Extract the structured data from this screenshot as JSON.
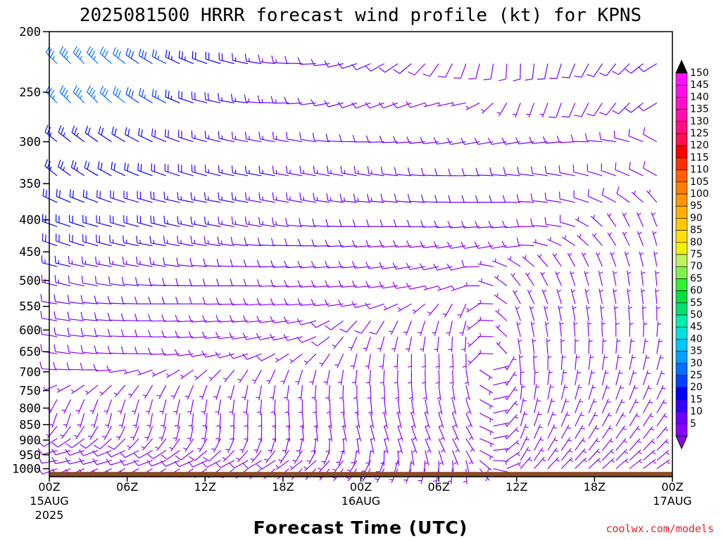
{
  "chart_data": {
    "type": "wind-barb-time-height",
    "title": "2025081500 HRRR forecast wind profile (kt) for KPNS",
    "xlabel": "Forecast Time (UTC)",
    "ylabel": "",
    "credit": "coolwx.com/models",
    "y_axis": {
      "unit": "hPa",
      "scale": "log-pressure",
      "ylim": [
        1030,
        200
      ],
      "ticks": [
        "200",
        "250",
        "300",
        "350",
        "400",
        "450",
        "500",
        "550",
        "600",
        "650",
        "700",
        "750",
        "800",
        "850",
        "900",
        "950",
        "1000"
      ]
    },
    "x_axis": {
      "xlim_hours": [
        0,
        48
      ],
      "ticks": [
        {
          "h": 0,
          "label": "00Z",
          "sub": "15AUG",
          "sub2": "2025"
        },
        {
          "h": 6,
          "label": "06Z",
          "sub": "",
          "sub2": ""
        },
        {
          "h": 12,
          "label": "12Z",
          "sub": "",
          "sub2": ""
        },
        {
          "h": 18,
          "label": "18Z",
          "sub": "",
          "sub2": ""
        },
        {
          "h": 24,
          "label": "00Z",
          "sub": "16AUG",
          "sub2": ""
        },
        {
          "h": 30,
          "label": "06Z",
          "sub": "",
          "sub2": ""
        },
        {
          "h": 36,
          "label": "12Z",
          "sub": "",
          "sub2": ""
        },
        {
          "h": 42,
          "label": "18Z",
          "sub": "",
          "sub2": ""
        },
        {
          "h": 48,
          "label": "00Z",
          "sub": "17AUG",
          "sub2": ""
        }
      ]
    },
    "surface_pressure_hpa": 1012,
    "colorbar": {
      "labels": [
        "5",
        "10",
        "15",
        "20",
        "25",
        "30",
        "35",
        "40",
        "45",
        "50",
        "55",
        "60",
        "65",
        "70",
        "75",
        "80",
        "85",
        "90",
        "95",
        "100",
        "105",
        "110",
        "115",
        "120",
        "125",
        "130",
        "135",
        "140",
        "145",
        "150"
      ],
      "colors": [
        "#8a00ff",
        "#6a00ff",
        "#3500ff",
        "#0000ff",
        "#0040ff",
        "#0070ff",
        "#00a0ff",
        "#00c8ff",
        "#00e0e0",
        "#00f0b0",
        "#00e070",
        "#00e040",
        "#30f030",
        "#80f050",
        "#c0f060",
        "#f0f000",
        "#ffe000",
        "#ffc800",
        "#ffb000",
        "#ff9800",
        "#ff8000",
        "#ff6000",
        "#ff3000",
        "#ff0000",
        "#ff1050",
        "#ff1080",
        "#ff10a8",
        "#ff10c8",
        "#ff10e8",
        "#ff10ff"
      ]
    },
    "wind_time_hours": [
      0,
      4,
      8,
      12,
      16,
      20,
      24,
      28,
      32,
      36,
      40,
      44,
      47
    ],
    "wind_samples": [
      {
        "p": 225,
        "spd": [
          33,
          33,
          28,
          22,
          16,
          12,
          12,
          10,
          8,
          10,
          12,
          12,
          12
        ],
        "dir": [
          315,
          315,
          300,
          290,
          280,
          270,
          250,
          230,
          200,
          180,
          200,
          220,
          240
        ]
      },
      {
        "p": 260,
        "spd": [
          33,
          33,
          27,
          20,
          15,
          12,
          10,
          8,
          6,
          6,
          8,
          10,
          12
        ],
        "dir": [
          315,
          315,
          300,
          285,
          275,
          265,
          250,
          250,
          260,
          200,
          200,
          220,
          240
        ]
      },
      {
        "p": 300,
        "spd": [
          24,
          22,
          20,
          17,
          14,
          12,
          12,
          10,
          10,
          10,
          10,
          8,
          10
        ],
        "dir": [
          310,
          305,
          295,
          285,
          280,
          280,
          270,
          265,
          260,
          260,
          265,
          280,
          300
        ]
      },
      {
        "p": 340,
        "spd": [
          25,
          22,
          20,
          18,
          16,
          14,
          13,
          12,
          11,
          10,
          10,
          8,
          8
        ],
        "dir": [
          310,
          300,
          290,
          285,
          280,
          280,
          280,
          275,
          270,
          275,
          280,
          290,
          300
        ]
      },
      {
        "p": 375,
        "spd": [
          22,
          20,
          18,
          16,
          15,
          14,
          13,
          12,
          11,
          10,
          9,
          8,
          7
        ],
        "dir": [
          295,
          290,
          285,
          280,
          280,
          280,
          275,
          275,
          270,
          270,
          280,
          300,
          320
        ]
      },
      {
        "p": 410,
        "spd": [
          22,
          20,
          18,
          16,
          14,
          12,
          11,
          10,
          10,
          9,
          8,
          6,
          6
        ],
        "dir": [
          290,
          285,
          285,
          280,
          280,
          275,
          270,
          270,
          265,
          265,
          280,
          330,
          340
        ]
      },
      {
        "p": 440,
        "spd": [
          20,
          18,
          16,
          14,
          12,
          11,
          10,
          9,
          8,
          8,
          7,
          6,
          6
        ],
        "dir": [
          290,
          285,
          280,
          280,
          275,
          270,
          265,
          265,
          260,
          260,
          300,
          330,
          345
        ]
      },
      {
        "p": 475,
        "spd": [
          16,
          14,
          13,
          12,
          11,
          10,
          9,
          8,
          8,
          7,
          7,
          6,
          5
        ],
        "dir": [
          285,
          280,
          280,
          275,
          270,
          265,
          265,
          260,
          255,
          300,
          330,
          340,
          350
        ]
      },
      {
        "p": 510,
        "spd": [
          13,
          12,
          11,
          10,
          10,
          9,
          8,
          8,
          7,
          6,
          6,
          5,
          5
        ],
        "dir": [
          285,
          280,
          275,
          270,
          270,
          265,
          265,
          260,
          250,
          320,
          340,
          350,
          355
        ]
      },
      {
        "p": 545,
        "spd": [
          12,
          11,
          10,
          10,
          9,
          9,
          8,
          7,
          7,
          6,
          5,
          5,
          5
        ],
        "dir": [
          280,
          275,
          270,
          270,
          265,
          265,
          260,
          240,
          200,
          330,
          345,
          350,
          355
        ]
      },
      {
        "p": 580,
        "spd": [
          11,
          10,
          10,
          9,
          9,
          8,
          8,
          7,
          6,
          6,
          5,
          5,
          5
        ],
        "dir": [
          280,
          275,
          270,
          265,
          265,
          260,
          220,
          200,
          190,
          340,
          350,
          355,
          0
        ]
      },
      {
        "p": 615,
        "spd": [
          10,
          10,
          9,
          9,
          8,
          8,
          7,
          6,
          6,
          5,
          5,
          5,
          5
        ],
        "dir": [
          280,
          275,
          270,
          265,
          260,
          255,
          200,
          190,
          180,
          345,
          355,
          0,
          5
        ]
      },
      {
        "p": 655,
        "spd": [
          9,
          9,
          8,
          8,
          8,
          7,
          6,
          6,
          5,
          5,
          5,
          5,
          5
        ],
        "dir": [
          280,
          275,
          270,
          260,
          250,
          230,
          190,
          180,
          175,
          350,
          0,
          5,
          10
        ]
      },
      {
        "p": 695,
        "spd": [
          8,
          8,
          7,
          7,
          7,
          6,
          6,
          5,
          5,
          5,
          5,
          5,
          5
        ],
        "dir": [
          275,
          270,
          250,
          230,
          210,
          195,
          185,
          180,
          175,
          355,
          5,
          10,
          15
        ]
      },
      {
        "p": 735,
        "spd": [
          7,
          7,
          6,
          6,
          6,
          6,
          5,
          5,
          5,
          5,
          5,
          5,
          5
        ],
        "dir": [
          250,
          230,
          210,
          200,
          190,
          185,
          180,
          175,
          170,
          0,
          10,
          15,
          20
        ]
      },
      {
        "p": 775,
        "spd": [
          6,
          6,
          6,
          6,
          5,
          5,
          5,
          5,
          5,
          5,
          5,
          5,
          5
        ],
        "dir": [
          210,
          200,
          195,
          190,
          185,
          180,
          175,
          170,
          165,
          5,
          15,
          20,
          25
        ]
      },
      {
        "p": 815,
        "spd": [
          6,
          6,
          6,
          5,
          5,
          5,
          5,
          5,
          5,
          5,
          5,
          5,
          5
        ],
        "dir": [
          200,
          195,
          190,
          185,
          180,
          175,
          170,
          165,
          160,
          10,
          20,
          25,
          30
        ]
      },
      {
        "p": 855,
        "spd": [
          7,
          7,
          6,
          6,
          5,
          5,
          5,
          5,
          5,
          5,
          5,
          5,
          5
        ],
        "dir": [
          220,
          210,
          200,
          190,
          180,
          175,
          165,
          160,
          155,
          15,
          25,
          30,
          35
        ]
      },
      {
        "p": 895,
        "spd": [
          8,
          8,
          7,
          7,
          6,
          6,
          5,
          5,
          5,
          5,
          5,
          5,
          5
        ],
        "dir": [
          240,
          230,
          220,
          210,
          200,
          190,
          170,
          160,
          150,
          20,
          30,
          35,
          40
        ]
      },
      {
        "p": 935,
        "spd": [
          9,
          9,
          8,
          8,
          7,
          6,
          6,
          5,
          5,
          5,
          5,
          5,
          5
        ],
        "dir": [
          255,
          250,
          240,
          230,
          220,
          210,
          190,
          170,
          155,
          25,
          35,
          40,
          45
        ]
      },
      {
        "p": 970,
        "spd": [
          10,
          10,
          9,
          9,
          8,
          7,
          7,
          6,
          6,
          5,
          5,
          5,
          5
        ],
        "dir": [
          260,
          255,
          250,
          245,
          240,
          230,
          210,
          190,
          170,
          30,
          40,
          45,
          50
        ]
      },
      {
        "p": 1000,
        "spd": [
          8,
          8,
          8,
          7,
          7,
          6,
          6,
          5,
          5,
          5,
          5,
          5,
          5
        ],
        "dir": [
          250,
          245,
          240,
          235,
          230,
          225,
          215,
          200,
          180,
          40,
          45,
          50,
          55
        ]
      }
    ]
  }
}
